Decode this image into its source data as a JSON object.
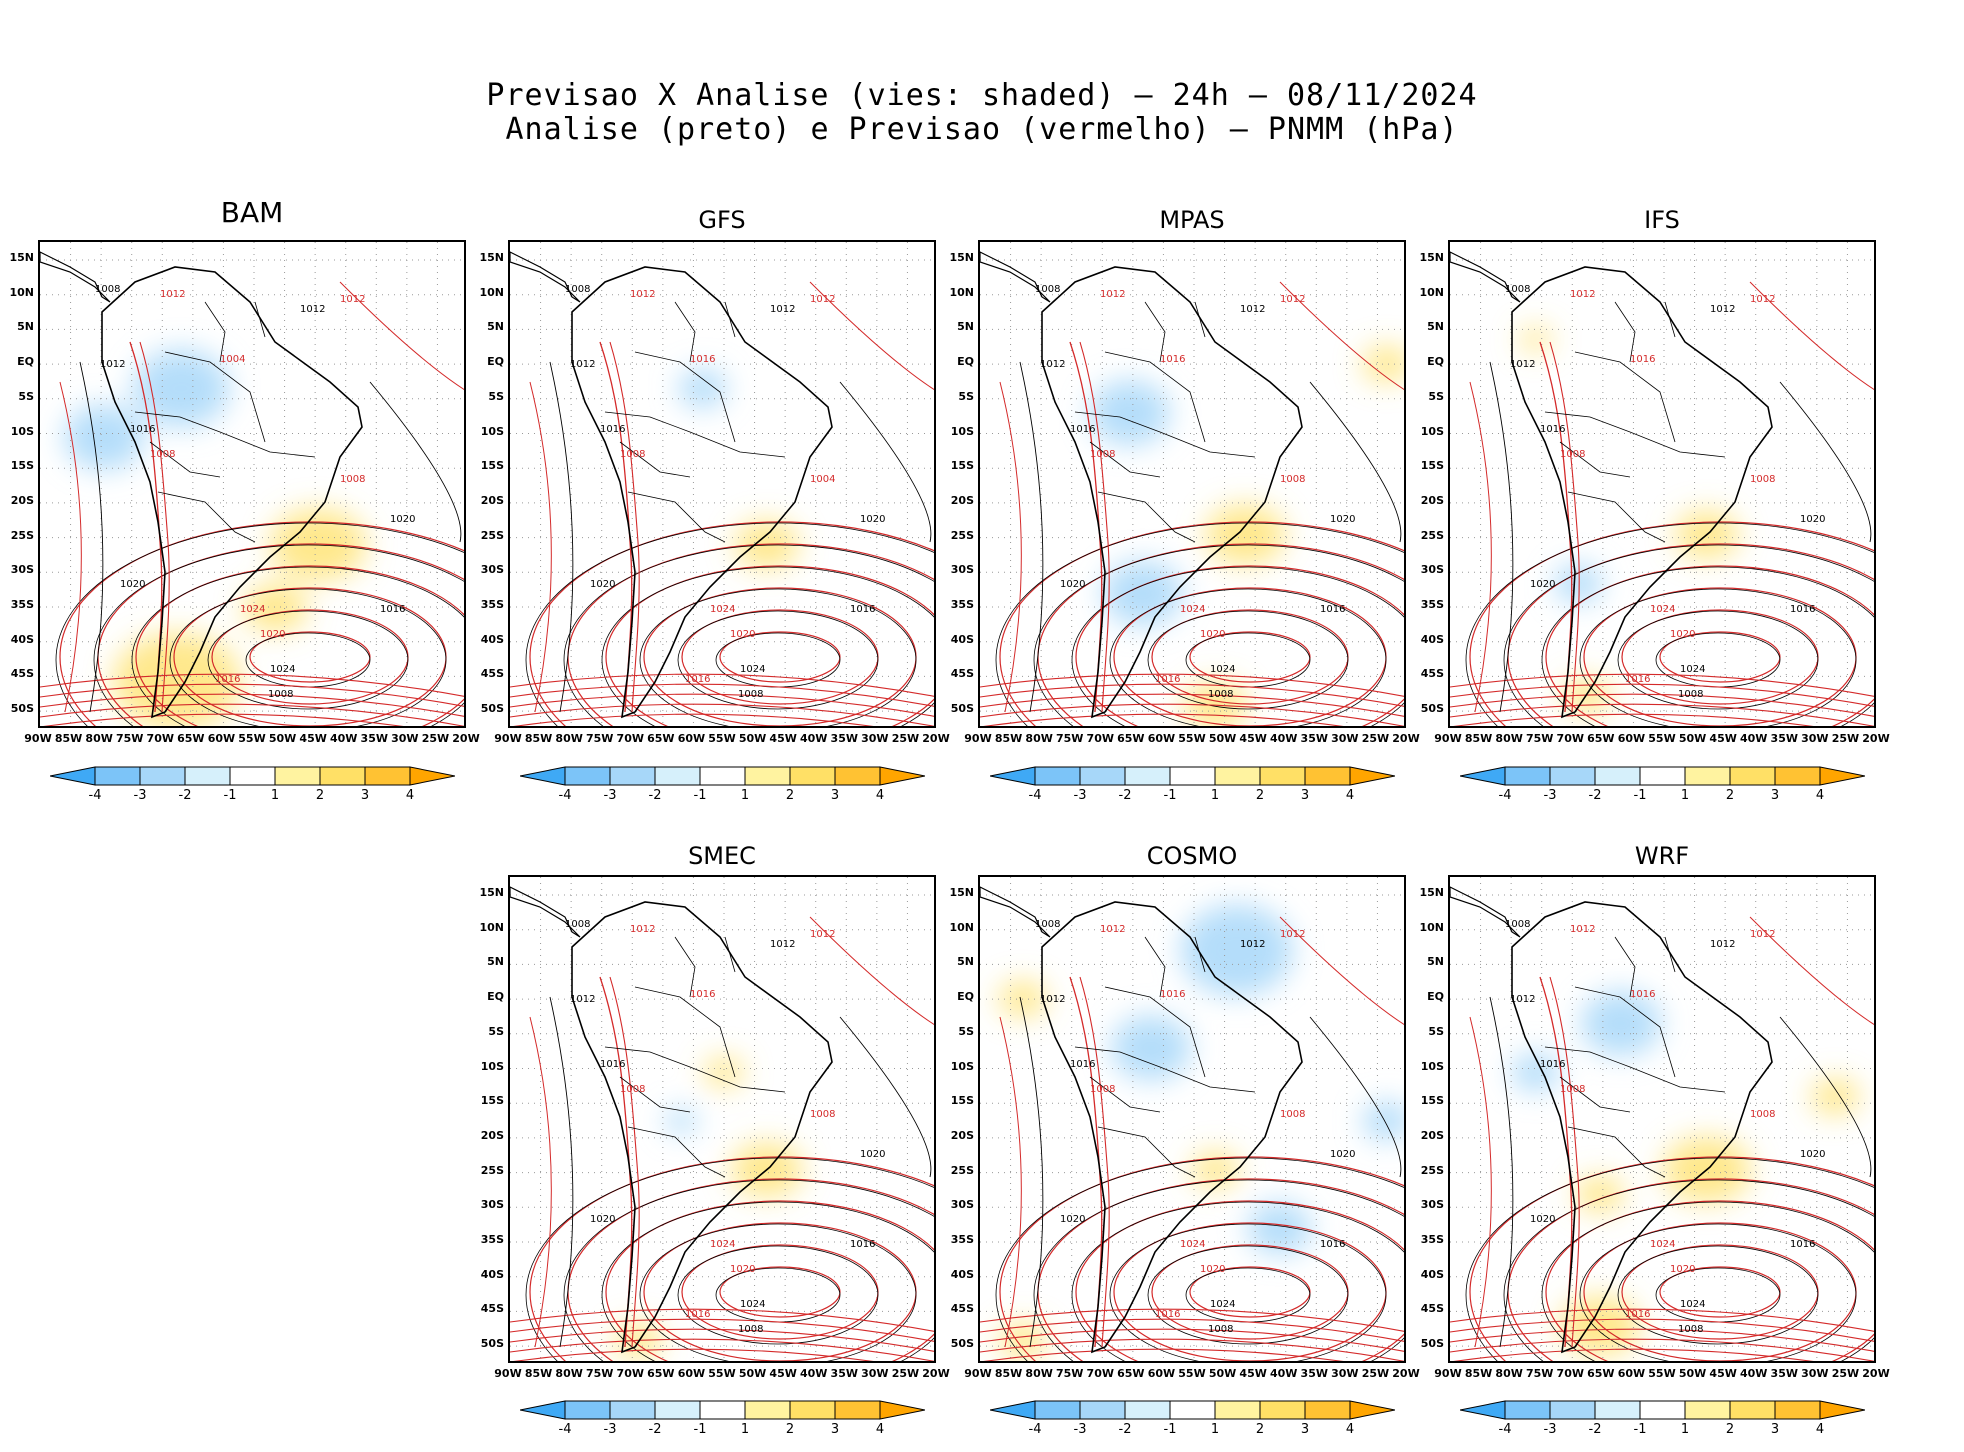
{
  "title_line1": "Previsao X Analise (vies: shaded) – 24h – 08/11/2024",
  "title_line2": "Analise (preto) e Previsao (vermelho) – PNMM (hPa)",
  "lat_labels": [
    "15N",
    "10N",
    "5N",
    "EQ",
    "5S",
    "10S",
    "15S",
    "20S",
    "25S",
    "30S",
    "35S",
    "40S",
    "45S",
    "50S"
  ],
  "lon_labels": [
    "90W",
    "85W",
    "80W",
    "75W",
    "70W",
    "65W",
    "60W",
    "55W",
    "50W",
    "45W",
    "40W",
    "35W",
    "30W",
    "25W",
    "20W"
  ],
  "colorbar": {
    "labels": [
      "-4",
      "-3",
      "-2",
      "-1",
      "1",
      "2",
      "3",
      "4"
    ],
    "colors": [
      "#3fa9f5",
      "#7cc4f8",
      "#a7d7f9",
      "#d6f0fb",
      "#ffffff",
      "#fff3a0",
      "#ffe066",
      "#ffc233",
      "#ffa500"
    ]
  },
  "legend_colors": {
    "analysis": "#000000",
    "forecast": "#d42a2a"
  },
  "panels": [
    {
      "id": "bam",
      "name": "BAM",
      "blue_blobs": [
        [
          0.15,
          0.4,
          0.5
        ],
        [
          0.33,
          0.3,
          0.6
        ]
      ],
      "yellow_blobs": [
        [
          0.65,
          0.62,
          0.6
        ],
        [
          0.32,
          0.9,
          0.8
        ],
        [
          0.55,
          0.75,
          0.4
        ]
      ],
      "labels_black": [
        "1008",
        "1012",
        "1012",
        "1016",
        "1020",
        "1020",
        "1024",
        "1008",
        "1016"
      ],
      "labels_red": [
        "1012",
        "1012",
        "1004",
        "1008",
        "1024",
        "1020",
        "1016",
        "1008"
      ]
    },
    {
      "id": "gfs",
      "name": "GFS",
      "blue_blobs": [
        [
          0.45,
          0.3,
          0.3
        ]
      ],
      "yellow_blobs": [
        [
          0.6,
          0.62,
          0.4
        ]
      ],
      "labels_black": [
        "1008",
        "1012",
        "1012",
        "1016",
        "1020",
        "1020",
        "1024",
        "1008",
        "1016"
      ],
      "labels_red": [
        "1012",
        "1012",
        "1016",
        "1008",
        "1024",
        "1020",
        "1016",
        "1004"
      ]
    },
    {
      "id": "mpas",
      "name": "MPAS",
      "blue_blobs": [
        [
          0.35,
          0.35,
          0.5
        ],
        [
          0.38,
          0.72,
          0.5
        ]
      ],
      "yellow_blobs": [
        [
          0.62,
          0.6,
          0.5
        ],
        [
          0.95,
          0.25,
          0.3
        ],
        [
          0.55,
          0.95,
          0.4
        ]
      ],
      "labels_black": [
        "1008",
        "1012",
        "1012",
        "1016",
        "1020",
        "1020",
        "1024",
        "1008",
        "1016"
      ],
      "labels_red": [
        "1012",
        "1012",
        "1016",
        "1008",
        "1024",
        "1020",
        "1016",
        "1008"
      ]
    },
    {
      "id": "ifs",
      "name": "IFS",
      "blue_blobs": [
        [
          0.3,
          0.7,
          0.3
        ]
      ],
      "yellow_blobs": [
        [
          0.6,
          0.6,
          0.4
        ],
        [
          0.2,
          0.2,
          0.2
        ],
        [
          0.32,
          0.93,
          0.3
        ]
      ],
      "labels_black": [
        "1008",
        "1012",
        "1012",
        "1016",
        "1020",
        "1020",
        "1024",
        "1008",
        "1016"
      ],
      "labels_red": [
        "1012",
        "1012",
        "1016",
        "1008",
        "1024",
        "1020",
        "1016",
        "1008"
      ]
    },
    {
      "id": "smec",
      "name": "SMEC",
      "blue_blobs": [
        [
          0.4,
          0.5,
          0.2
        ]
      ],
      "yellow_blobs": [
        [
          0.6,
          0.6,
          0.45
        ],
        [
          0.5,
          0.4,
          0.25
        ],
        [
          0.3,
          0.95,
          0.3
        ]
      ],
      "labels_black": [
        "1008",
        "1012",
        "1012",
        "1016",
        "1020",
        "1020",
        "1024",
        "1008",
        "1016"
      ],
      "labels_red": [
        "1012",
        "1012",
        "1016",
        "1008",
        "1024",
        "1020",
        "1016",
        "1008"
      ]
    },
    {
      "id": "cosmo",
      "name": "COSMO",
      "blue_blobs": [
        [
          0.6,
          0.15,
          0.7
        ],
        [
          0.4,
          0.35,
          0.5
        ],
        [
          0.7,
          0.72,
          0.4
        ],
        [
          0.95,
          0.5,
          0.3
        ]
      ],
      "yellow_blobs": [
        [
          0.1,
          0.25,
          0.3
        ],
        [
          0.55,
          0.6,
          0.3
        ],
        [
          0.1,
          0.95,
          0.3
        ]
      ],
      "labels_black": [
        "1008",
        "1012",
        "1012",
        "1016",
        "1020",
        "1020",
        "1024",
        "1008",
        "1016"
      ],
      "labels_red": [
        "1012",
        "1012",
        "1016",
        "1008",
        "1024",
        "1020",
        "1016",
        "1008"
      ]
    },
    {
      "id": "wrf",
      "name": "WRF",
      "blue_blobs": [
        [
          0.4,
          0.3,
          0.5
        ],
        [
          0.2,
          0.4,
          0.3
        ]
      ],
      "yellow_blobs": [
        [
          0.6,
          0.6,
          0.55
        ],
        [
          0.35,
          0.65,
          0.3
        ],
        [
          0.35,
          0.92,
          0.5
        ],
        [
          0.9,
          0.45,
          0.3
        ]
      ],
      "labels_black": [
        "1008",
        "1012",
        "1012",
        "1016",
        "1020",
        "1020",
        "1024",
        "1008",
        "1016"
      ],
      "labels_red": [
        "1012",
        "1012",
        "1016",
        "1008",
        "1024",
        "1020",
        "1016",
        "1008"
      ]
    }
  ]
}
